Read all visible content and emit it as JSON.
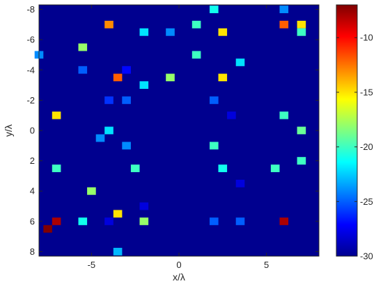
{
  "chart_data": {
    "type": "heatmap",
    "xlabel": "x/λ",
    "ylabel": "y/λ",
    "xlim": [
      -8.0,
      8.0
    ],
    "ylim": [
      -8.3,
      8.3
    ],
    "y_axis_reversed": true,
    "grid": false,
    "background_value": -30,
    "cell_size": [
      0.5,
      0.5
    ],
    "x_ticks": [
      -5,
      0,
      5
    ],
    "x_tick_labels": [
      "-5",
      "0",
      "5"
    ],
    "y_ticks": [
      -8,
      -6,
      -4,
      -2,
      0,
      2,
      4,
      6,
      8
    ],
    "y_tick_labels": [
      "-8",
      "-6",
      "-4",
      "-2",
      "0",
      "2",
      "4",
      "6",
      "8"
    ],
    "colorbar": {
      "position": "right",
      "colormap": "jet",
      "min": -30,
      "max": -7,
      "ticks": [
        -10,
        -15,
        -20,
        -25,
        -30
      ],
      "tick_labels": [
        "-10",
        "-15",
        "-20",
        "-25",
        "-30"
      ]
    },
    "cells": [
      {
        "x": 2.0,
        "y": -8.0,
        "value": -21
      },
      {
        "x": 6.0,
        "y": -8.0,
        "value": -24
      },
      {
        "x": -4.0,
        "y": -7.0,
        "value": -13
      },
      {
        "x": 1.0,
        "y": -7.0,
        "value": -20
      },
      {
        "x": 6.0,
        "y": -7.0,
        "value": -12
      },
      {
        "x": 7.0,
        "y": -7.0,
        "value": -15
      },
      {
        "x": -2.0,
        "y": -6.5,
        "value": -22
      },
      {
        "x": -0.5,
        "y": -6.5,
        "value": -24
      },
      {
        "x": 2.5,
        "y": -6.5,
        "value": -15
      },
      {
        "x": 7.0,
        "y": -6.5,
        "value": -20
      },
      {
        "x": -5.5,
        "y": -5.5,
        "value": -18
      },
      {
        "x": -8.0,
        "y": -5.0,
        "value": -24
      },
      {
        "x": 1.0,
        "y": -5.0,
        "value": -20
      },
      {
        "x": 3.5,
        "y": -4.5,
        "value": -22
      },
      {
        "x": -5.5,
        "y": -4.0,
        "value": -25
      },
      {
        "x": -3.0,
        "y": -4.0,
        "value": -27
      },
      {
        "x": -3.5,
        "y": -3.5,
        "value": -12
      },
      {
        "x": -0.5,
        "y": -3.5,
        "value": -18
      },
      {
        "x": 2.5,
        "y": -3.5,
        "value": -15
      },
      {
        "x": -2.0,
        "y": -3.0,
        "value": -22
      },
      {
        "x": -4.0,
        "y": -2.0,
        "value": -26
      },
      {
        "x": -3.0,
        "y": -2.0,
        "value": -25
      },
      {
        "x": 2.0,
        "y": -2.0,
        "value": -25
      },
      {
        "x": -7.0,
        "y": -1.0,
        "value": -15
      },
      {
        "x": 3.0,
        "y": -1.0,
        "value": -28
      },
      {
        "x": 6.0,
        "y": -1.0,
        "value": -20
      },
      {
        "x": -4.0,
        "y": 0.0,
        "value": -22
      },
      {
        "x": 7.0,
        "y": 0.0,
        "value": -19
      },
      {
        "x": -4.5,
        "y": 0.5,
        "value": -24
      },
      {
        "x": -3.0,
        "y": 1.0,
        "value": -24
      },
      {
        "x": 2.0,
        "y": 1.0,
        "value": -20
      },
      {
        "x": -7.0,
        "y": 2.5,
        "value": -20
      },
      {
        "x": -2.5,
        "y": 2.5,
        "value": -20
      },
      {
        "x": 2.5,
        "y": 2.5,
        "value": -21
      },
      {
        "x": 5.5,
        "y": 2.5,
        "value": -20
      },
      {
        "x": 7.0,
        "y": 2.0,
        "value": -20
      },
      {
        "x": 3.5,
        "y": 3.5,
        "value": -28
      },
      {
        "x": -5.0,
        "y": 4.0,
        "value": -18
      },
      {
        "x": -2.0,
        "y": 5.0,
        "value": -28
      },
      {
        "x": -3.5,
        "y": 5.5,
        "value": -15
      },
      {
        "x": -7.0,
        "y": 6.0,
        "value": -8
      },
      {
        "x": -5.5,
        "y": 6.0,
        "value": -21
      },
      {
        "x": -4.0,
        "y": 6.0,
        "value": -28
      },
      {
        "x": -2.0,
        "y": 6.0,
        "value": -18
      },
      {
        "x": 2.0,
        "y": 6.0,
        "value": -25
      },
      {
        "x": 3.5,
        "y": 6.0,
        "value": -25
      },
      {
        "x": 6.0,
        "y": 6.0,
        "value": -8
      },
      {
        "x": -7.5,
        "y": 6.5,
        "value": -7
      },
      {
        "x": -3.5,
        "y": 8.0,
        "value": -23
      }
    ]
  }
}
